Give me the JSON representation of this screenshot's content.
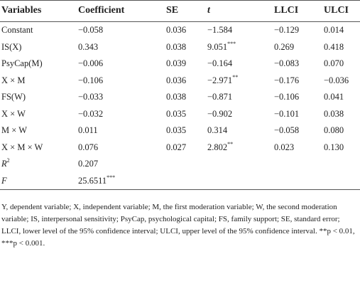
{
  "table": {
    "header": [
      "Variables",
      "Coefficient",
      "SE",
      "t",
      "LLCI",
      "ULCI"
    ],
    "rows": [
      [
        "Constant",
        "−0.058",
        "0.036",
        "−1.584",
        "−0.129",
        "0.014"
      ],
      [
        "IS(X)",
        "0.343",
        "0.038",
        {
          "value": "9.051",
          "sig": "***"
        },
        "0.269",
        "0.418"
      ],
      [
        "PsyCap(M)",
        "−0.006",
        "0.039",
        "−0.164",
        "−0.083",
        "0.070"
      ],
      [
        "X × M",
        "−0.106",
        "0.036",
        {
          "value": "−2.971",
          "sig": "**"
        },
        "−0.176",
        "−0.036"
      ],
      [
        "FS(W)",
        "−0.033",
        "0.038",
        "−0.871",
        "−0.106",
        "0.041"
      ],
      [
        "X × W",
        "−0.032",
        "0.035",
        "−0.902",
        "−0.101",
        "0.038"
      ],
      [
        "M × W",
        "0.011",
        "0.035",
        "0.314",
        "−0.058",
        "0.080"
      ],
      [
        "X × M × W",
        "0.076",
        "0.027",
        {
          "value": "2.802",
          "sig": "**"
        },
        "0.023",
        "0.130"
      ],
      [
        {
          "value": "R",
          "sig": "2"
        },
        "0.207"
      ],
      [
        "F",
        {
          "value": "25.6511",
          "sig": "***"
        }
      ]
    ]
  },
  "footnote": "Y, dependent variable; X, independent variable; M, the first moderation variable; W, the second moderation variable; IS, interpersonal sensitivity; PsyCap, psychological capital; FS, family support; SE, standard error; LLCI, lower level of the 95% confidence interval; ULCI, upper level of the 95% confidence interval. **p < 0.01, ***p < 0.001."
}
